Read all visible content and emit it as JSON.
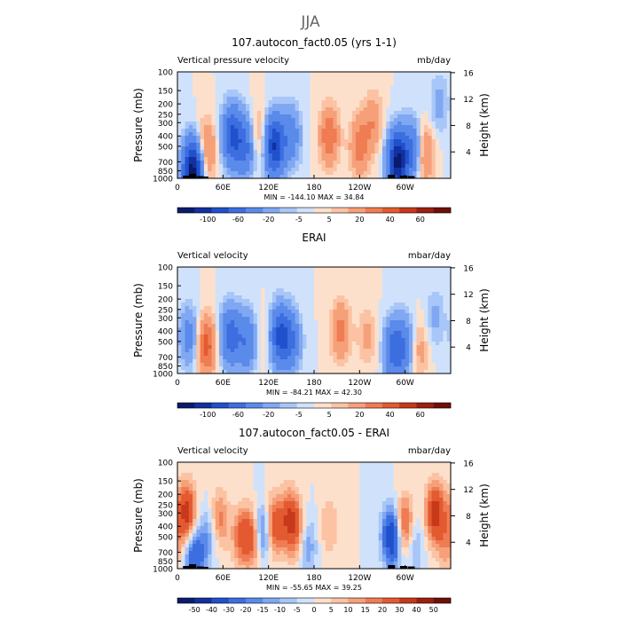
{
  "figure": {
    "season_title": "JJA"
  },
  "chart_data": [
    {
      "type": "heatmap",
      "title": "107.autocon_fact0.05 (yrs 1-1)",
      "left_label": "Vertical pressure velocity",
      "units": "mb/day",
      "ylabel": "Pressure (mb)",
      "ylabel_right": "Height (km)",
      "x_ticks": [
        "0",
        "60E",
        "120E",
        "180",
        "120W",
        "60W"
      ],
      "y_ticks": [
        "100",
        "150",
        "200",
        "250",
        "300",
        "400",
        "500",
        "700",
        "850",
        "1000"
      ],
      "y_right_ticks": [
        "16",
        "12",
        "8",
        "4"
      ],
      "stats": "MIN = -144.10   MAX =  34.84",
      "colorbar_labels": [
        "-100",
        "-60",
        "-20",
        "-5",
        "5",
        "20",
        "40",
        "60"
      ],
      "colorbar_colors": [
        "#0a1a6e",
        "#12309e",
        "#2050cc",
        "#3c6ee0",
        "#5a8aea",
        "#80a8f2",
        "#a8c6f7",
        "#d0e2fb",
        "#fde0cc",
        "#fbc3a3",
        "#f6a07a",
        "#ef7c52",
        "#e45a30",
        "#c8381a",
        "#9c2010",
        "#6e1008"
      ],
      "features": [
        {
          "lon": 20,
          "p": 850,
          "w": -110
        },
        {
          "lon": 38,
          "p": 550,
          "w": 26
        },
        {
          "lon": 72,
          "p": 400,
          "w": -62
        },
        {
          "lon": 90,
          "p": 500,
          "w": -45
        },
        {
          "lon": 105,
          "p": 400,
          "w": 18
        },
        {
          "lon": 128,
          "p": 500,
          "w": -80
        },
        {
          "lon": 150,
          "p": 400,
          "w": -30
        },
        {
          "lon": 200,
          "p": 400,
          "w": 30
        },
        {
          "lon": 240,
          "p": 500,
          "w": 26
        },
        {
          "lon": 258,
          "p": 300,
          "w": 18
        },
        {
          "lon": 290,
          "p": 700,
          "w": -105
        },
        {
          "lon": 310,
          "p": 550,
          "w": -40
        },
        {
          "lon": 325,
          "p": 600,
          "w": 26
        },
        {
          "lon": 345,
          "p": 200,
          "w": -14
        }
      ],
      "topography": [
        [
          12,
          30
        ],
        [
          20,
          50
        ],
        [
          30,
          25
        ],
        [
          36,
          20
        ],
        [
          282,
          40
        ],
        [
          298,
          30
        ],
        [
          308,
          25
        ]
      ]
    },
    {
      "type": "heatmap",
      "title": "ERAI",
      "left_label": "Vertical velocity",
      "units": "mbar/day",
      "ylabel": "Pressure (mb)",
      "ylabel_right": "Height (km)",
      "x_ticks": [
        "0",
        "60E",
        "120E",
        "180",
        "120W",
        "60W"
      ],
      "y_ticks": [
        "100",
        "150",
        "200",
        "250",
        "300",
        "400",
        "500",
        "700",
        "850",
        "1000"
      ],
      "y_right_ticks": [
        "16",
        "12",
        "8",
        "4"
      ],
      "stats": "MIN = -84.21   MAX =  42.30",
      "colorbar_labels": [
        "-100",
        "-60",
        "-20",
        "-5",
        "5",
        "20",
        "40",
        "60"
      ],
      "colorbar_colors": [
        "#0a1a6e",
        "#12309e",
        "#2050cc",
        "#3c6ee0",
        "#5a8aea",
        "#80a8f2",
        "#a8c6f7",
        "#d0e2fb",
        "#fde0cc",
        "#fbc3a3",
        "#f6a07a",
        "#ef7c52",
        "#e45a30",
        "#c8381a",
        "#9c2010",
        "#6e1008"
      ],
      "features": [
        {
          "lon": 15,
          "p": 450,
          "w": -28
        },
        {
          "lon": 38,
          "p": 550,
          "w": 35
        },
        {
          "lon": 70,
          "p": 450,
          "w": -50
        },
        {
          "lon": 92,
          "p": 500,
          "w": -38
        },
        {
          "lon": 110,
          "p": 500,
          "w": 8
        },
        {
          "lon": 135,
          "p": 450,
          "w": -62
        },
        {
          "lon": 150,
          "p": 500,
          "w": -35
        },
        {
          "lon": 215,
          "p": 400,
          "w": 24
        },
        {
          "lon": 250,
          "p": 450,
          "w": 12
        },
        {
          "lon": 285,
          "p": 600,
          "w": -48
        },
        {
          "lon": 300,
          "p": 550,
          "w": -30
        },
        {
          "lon": 318,
          "p": 600,
          "w": 15
        },
        {
          "lon": 340,
          "p": 300,
          "w": -12
        }
      ],
      "topography": []
    },
    {
      "type": "heatmap",
      "title": "107.autocon_fact0.05 - ERAI",
      "left_label": "Vertical velocity",
      "units": "mbar/day",
      "ylabel": "Pressure (mb)",
      "ylabel_right": "Height (km)",
      "x_ticks": [
        "0",
        "60E",
        "120E",
        "180",
        "120W",
        "60W"
      ],
      "y_ticks": [
        "100",
        "150",
        "200",
        "250",
        "300",
        "400",
        "500",
        "700",
        "850",
        "1000"
      ],
      "y_right_ticks": [
        "16",
        "12",
        "8",
        "4"
      ],
      "stats": "MIN = -55.65   MAX =  39.25",
      "colorbar_labels": [
        "-50",
        "-40",
        "-30",
        "-20",
        "-15",
        "-10",
        "-5",
        "0",
        "5",
        "10",
        "15",
        "20",
        "30",
        "40",
        "50"
      ],
      "colorbar_colors": [
        "#0a1a6e",
        "#12309e",
        "#2050cc",
        "#3c6ee0",
        "#5a8aea",
        "#80a8f2",
        "#a8c6f7",
        "#d0e2fb",
        "#fde0cc",
        "#fbc3a3",
        "#f6a07a",
        "#ef7c52",
        "#e45a30",
        "#c8381a",
        "#9c2010",
        "#6e1008"
      ],
      "features": [
        {
          "lon": 12,
          "p": 300,
          "w": 35
        },
        {
          "lon": 22,
          "p": 800,
          "w": -30
        },
        {
          "lon": 40,
          "p": 500,
          "w": -15
        },
        {
          "lon": 55,
          "p": 350,
          "w": 18
        },
        {
          "lon": 85,
          "p": 500,
          "w": 22
        },
        {
          "lon": 102,
          "p": 500,
          "w": 30
        },
        {
          "lon": 112,
          "p": 450,
          "w": -40
        },
        {
          "lon": 125,
          "p": 400,
          "w": 32
        },
        {
          "lon": 148,
          "p": 350,
          "w": 30
        },
        {
          "lon": 160,
          "p": 500,
          "w": 15
        },
        {
          "lon": 170,
          "p": 600,
          "w": -18
        },
        {
          "lon": 200,
          "p": 400,
          "w": 10
        },
        {
          "lon": 283,
          "p": 500,
          "w": -45
        },
        {
          "lon": 298,
          "p": 400,
          "w": 30
        },
        {
          "lon": 312,
          "p": 600,
          "w": -12
        },
        {
          "lon": 340,
          "p": 300,
          "w": 35
        },
        {
          "lon": 355,
          "p": 600,
          "w": 12
        }
      ],
      "topography": [
        [
          12,
          30
        ],
        [
          20,
          50
        ],
        [
          30,
          25
        ],
        [
          36,
          20
        ],
        [
          282,
          40
        ],
        [
          298,
          30
        ],
        [
          308,
          25
        ]
      ]
    }
  ]
}
